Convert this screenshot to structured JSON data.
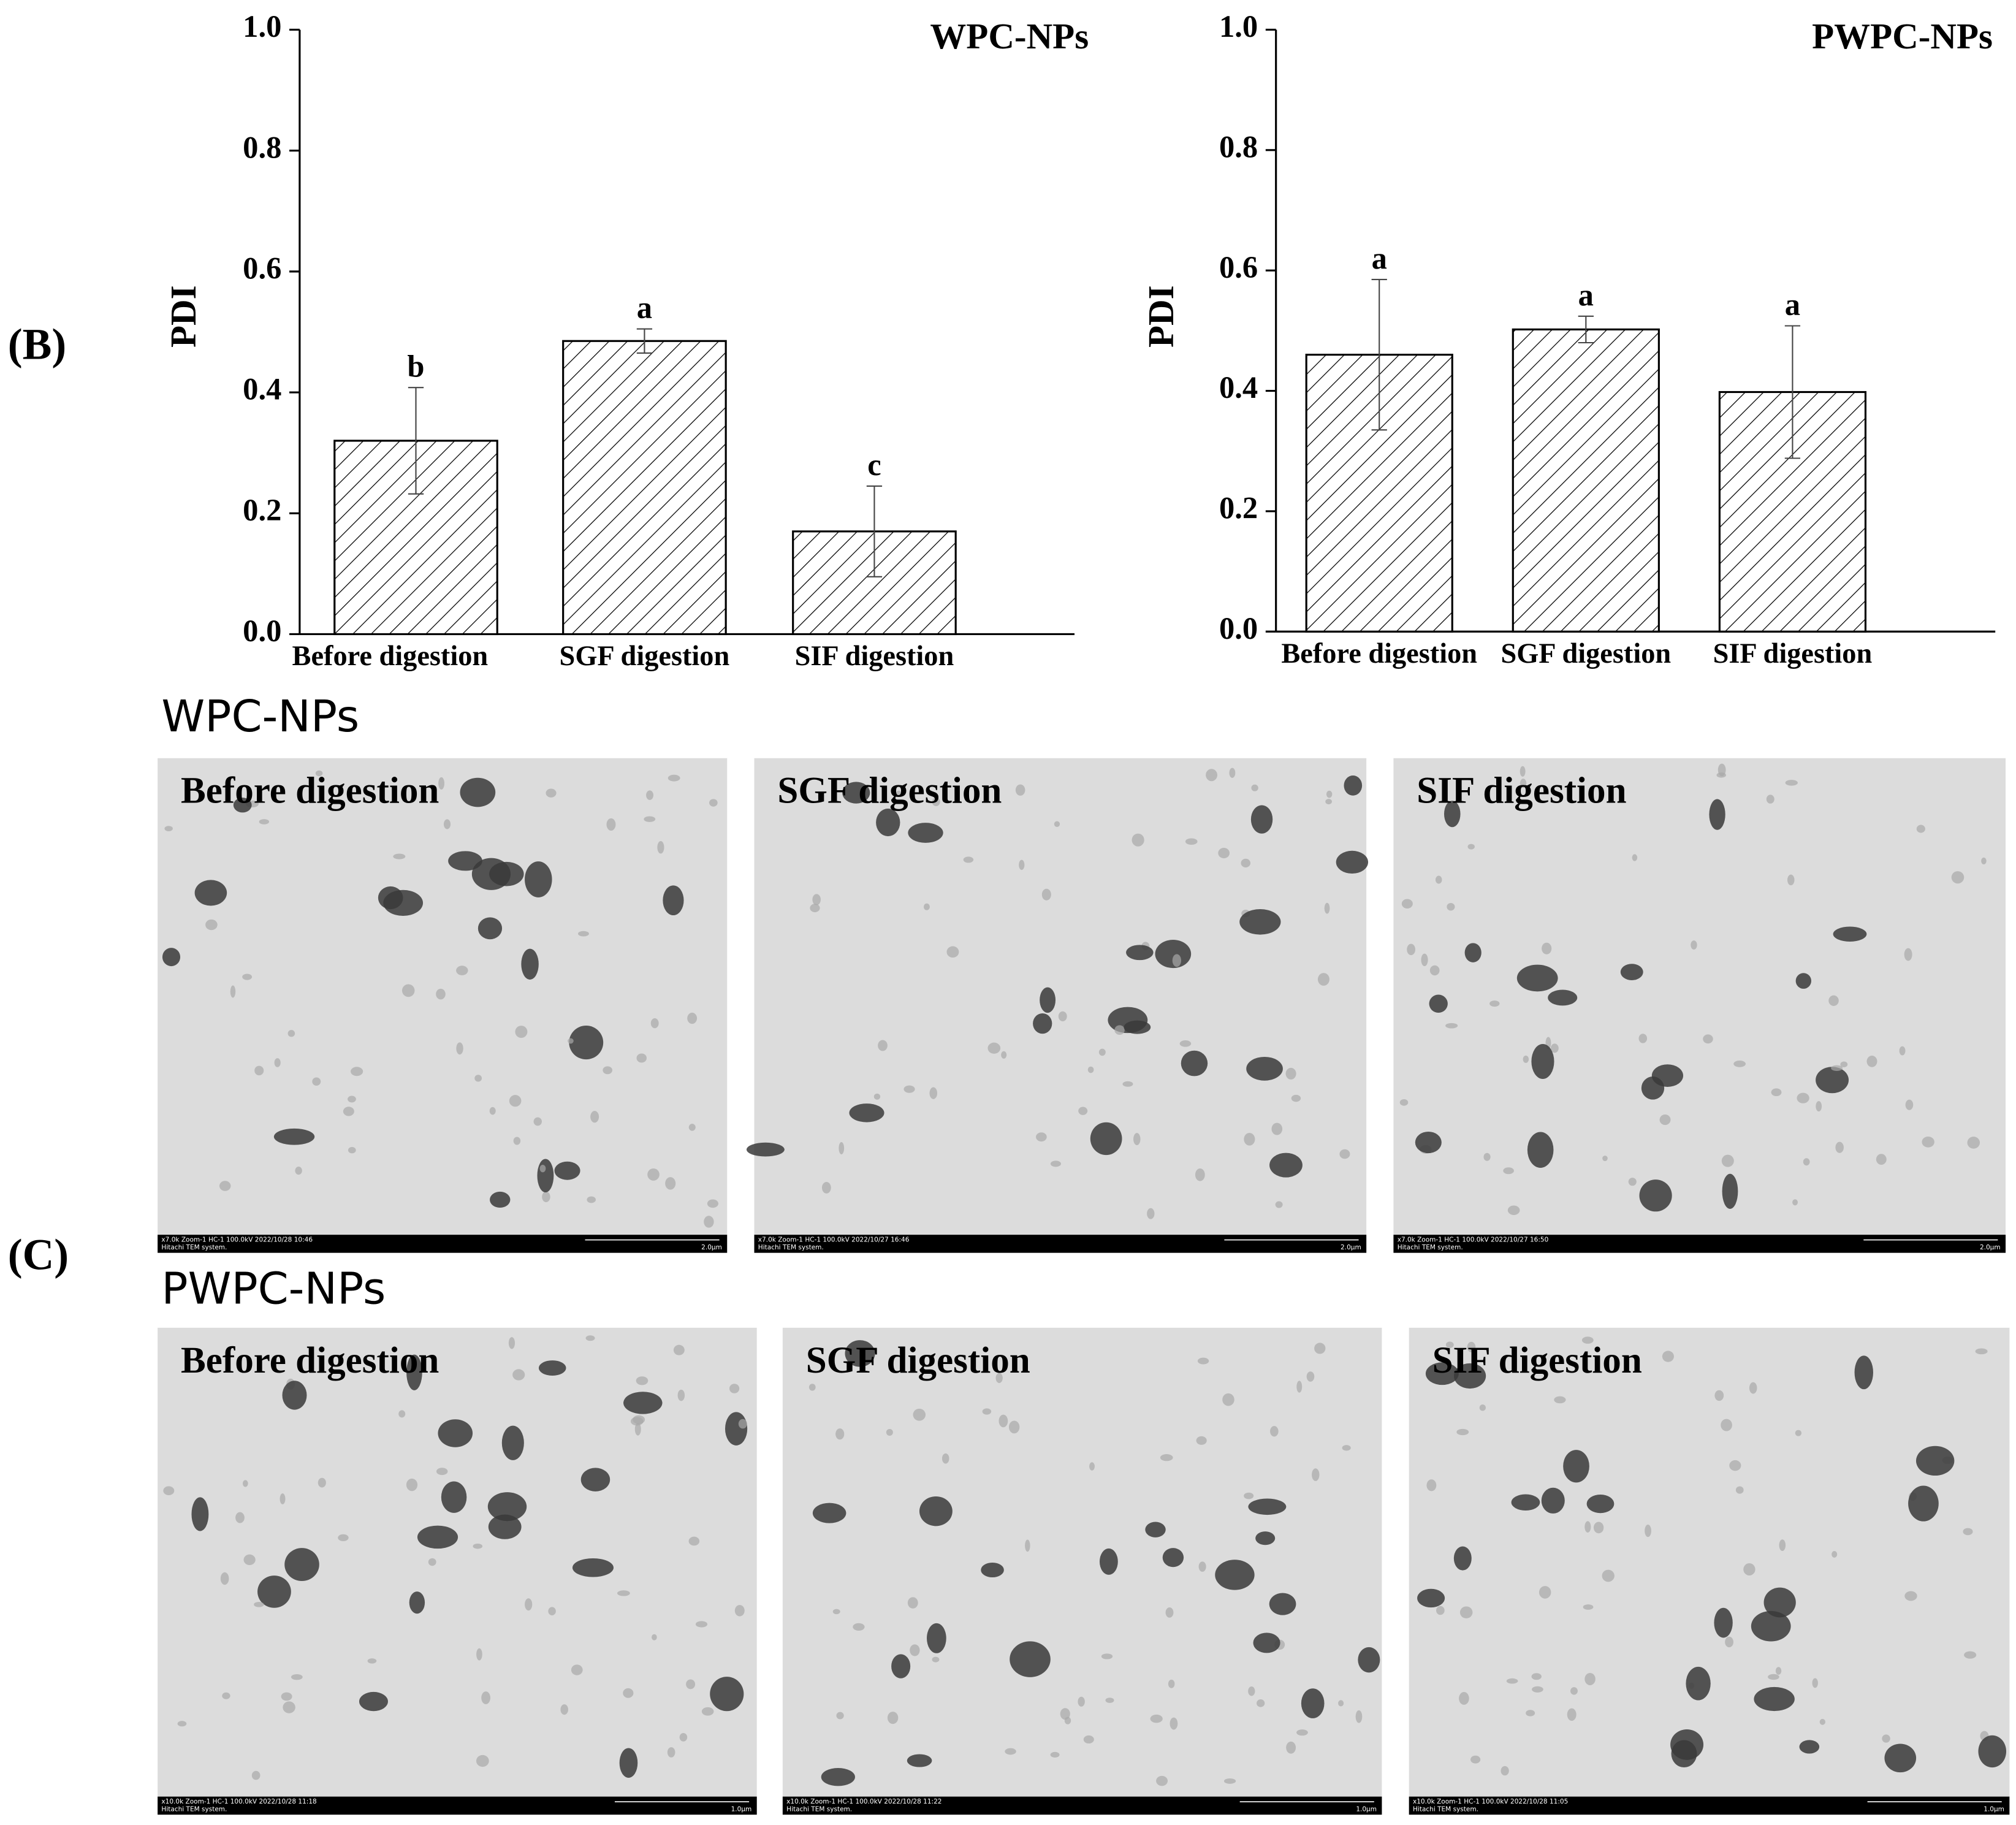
{
  "chart_data": [
    {
      "type": "bar",
      "title": "WPC-NPs",
      "ylabel": "PDI",
      "categories": [
        "Before digestion",
        "SGF digestion",
        "SIF digestion"
      ],
      "values": [
        0.32,
        0.485,
        0.17
      ],
      "errors": [
        0.088,
        0.02,
        0.075
      ],
      "annotations": [
        "b",
        "a",
        "c"
      ],
      "ylim": [
        0,
        1
      ],
      "yticks": [
        {
          "value": 0,
          "label": "0.0"
        },
        0.2,
        0.4,
        0.6,
        0.8,
        {
          "value": 1,
          "label": "1.0"
        }
      ]
    },
    {
      "type": "bar",
      "title": "PWPC-NPs",
      "ylabel": "PDI",
      "categories": [
        "Before digestion",
        "SGF digestion",
        "SIF digestion"
      ],
      "values": [
        0.46,
        0.502,
        0.398
      ],
      "errors": [
        0.125,
        0.022,
        0.11
      ],
      "annotations": [
        "a",
        "a",
        "a"
      ],
      "ylim": [
        0,
        1
      ],
      "yticks": [
        {
          "value": 0,
          "label": "0.0"
        },
        0.2,
        0.4,
        0.6,
        0.8,
        {
          "value": 1,
          "label": "1.0"
        }
      ]
    }
  ],
  "figure": {
    "labels": [
      "(B)",
      "(C)"
    ],
    "tem_rows": [
      {
        "title": "WPC-NPs",
        "images": [
          {
            "caption": "Before digestion",
            "meta": "x7.0k Zoom-1 HC-1 100.0kV 2022/10/28 10:46",
            "system": "Hitachi TEM system.",
            "scale": "2.0μm"
          },
          {
            "caption": "SGF digestion",
            "meta": "x7.0k Zoom-1 HC-1 100.0kV 2022/10/27 16:46",
            "system": "Hitachi TEM system.",
            "scale": "2.0μm"
          },
          {
            "caption": "SIF digestion",
            "meta": "x7.0k Zoom-1 HC-1 100.0kV 2022/10/27 16:50",
            "system": "Hitachi TEM system.",
            "scale": "2.0μm"
          }
        ]
      },
      {
        "title": "PWPC-NPs",
        "images": [
          {
            "caption": "Before digestion",
            "meta": "x10.0k Zoom-1 HC-1 100.0kV 2022/10/28 11:18",
            "system": "Hitachi TEM system.",
            "scale": "1.0μm"
          },
          {
            "caption": "SGF digestion",
            "meta": "x10.0k Zoom-1 HC-1 100.0kV 2022/10/28 11:22",
            "system": "Hitachi TEM system.",
            "scale": "1.0μm"
          },
          {
            "caption": "SIF digestion",
            "meta": "x10.0k Zoom-1 HC-1 100.0kV 2022/10/28 11:05",
            "system": "Hitachi TEM system.",
            "scale": "1.0μm"
          }
        ]
      }
    ]
  }
}
